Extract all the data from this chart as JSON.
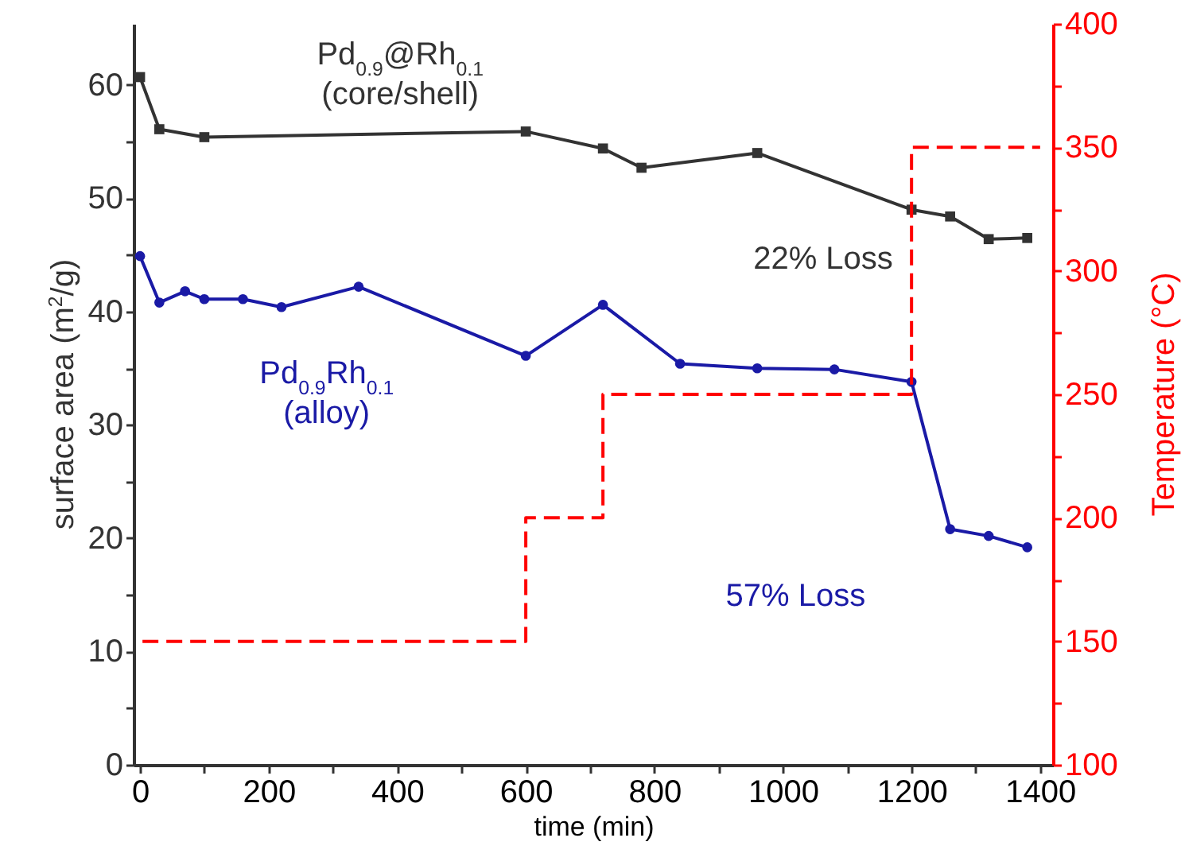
{
  "chart_data": {
    "type": "line",
    "xlabel": "time (min)",
    "ylabel": "surface area (m$^{2}$/g)",
    "y2label": "Temperature (°C)",
    "xlim": [
      -10,
      1420
    ],
    "ylim": [
      0,
      65.4
    ],
    "y2lim": [
      100,
      400
    ],
    "xticks": [
      0,
      {
        "value": 100,
        "label": null
      },
      200,
      {
        "value": 300,
        "label": null
      },
      400,
      {
        "value": 500,
        "label": null
      },
      600,
      {
        "value": 700,
        "label": null
      },
      800,
      {
        "value": 900,
        "label": null
      },
      1000,
      {
        "value": 1100,
        "label": null
      },
      1200,
      {
        "value": 1300,
        "label": null
      },
      1400
    ],
    "yticks": [
      0,
      {
        "value": 5,
        "label": null
      },
      10,
      {
        "value": 15,
        "label": null
      },
      20,
      {
        "value": 25,
        "label": null
      },
      30,
      {
        "value": 35,
        "label": null
      },
      40,
      {
        "value": 45,
        "label": null
      },
      50,
      {
        "value": 55,
        "label": null
      },
      60
    ],
    "y2ticks": [
      100,
      {
        "value": 125,
        "label": null
      },
      150,
      {
        "value": 175,
        "label": null
      },
      200,
      {
        "value": 225,
        "label": null
      },
      250,
      {
        "value": 275,
        "label": null
      },
      300,
      {
        "value": 325,
        "label": null
      },
      350,
      {
        "value": 375,
        "label": null
      },
      400
    ],
    "grid": false,
    "series": [
      {
        "name": "Pd$_{0.9}$@Rh$_{0.1}$\n(core/shell)",
        "color": "#333333",
        "marker": "square",
        "x": [
          0,
          30,
          100,
          600,
          720,
          780,
          960,
          1200,
          1260,
          1320,
          1380
        ],
        "values": [
          60.7,
          56.1,
          55.4,
          55.9,
          54.4,
          52.7,
          54.0,
          49.0,
          48.4,
          46.4,
          46.5
        ]
      },
      {
        "name": "Pd$_{0.9}$Rh$_{0.1}$\n(alloy)",
        "color": "#1a1aa6",
        "marker": "circle",
        "x": [
          0,
          30,
          70,
          100,
          160,
          220,
          340,
          600,
          720,
          840,
          960,
          1080,
          1200,
          1260,
          1320,
          1380
        ],
        "values": [
          44.9,
          40.8,
          41.8,
          41.1,
          41.1,
          40.4,
          42.2,
          36.1,
          40.6,
          35.4,
          35.0,
          34.9,
          33.8,
          20.8,
          20.2,
          19.2
        ]
      },
      {
        "type": "step",
        "axis": "y2",
        "color": "#ff0000",
        "line_style": "dashed",
        "marker": "none",
        "x": [
          0,
          600,
          720,
          1200,
          1400
        ],
        "values": [
          150,
          200,
          250,
          350,
          350
        ]
      }
    ],
    "annotations": [
      "22% Loss",
      "57% Loss"
    ]
  }
}
